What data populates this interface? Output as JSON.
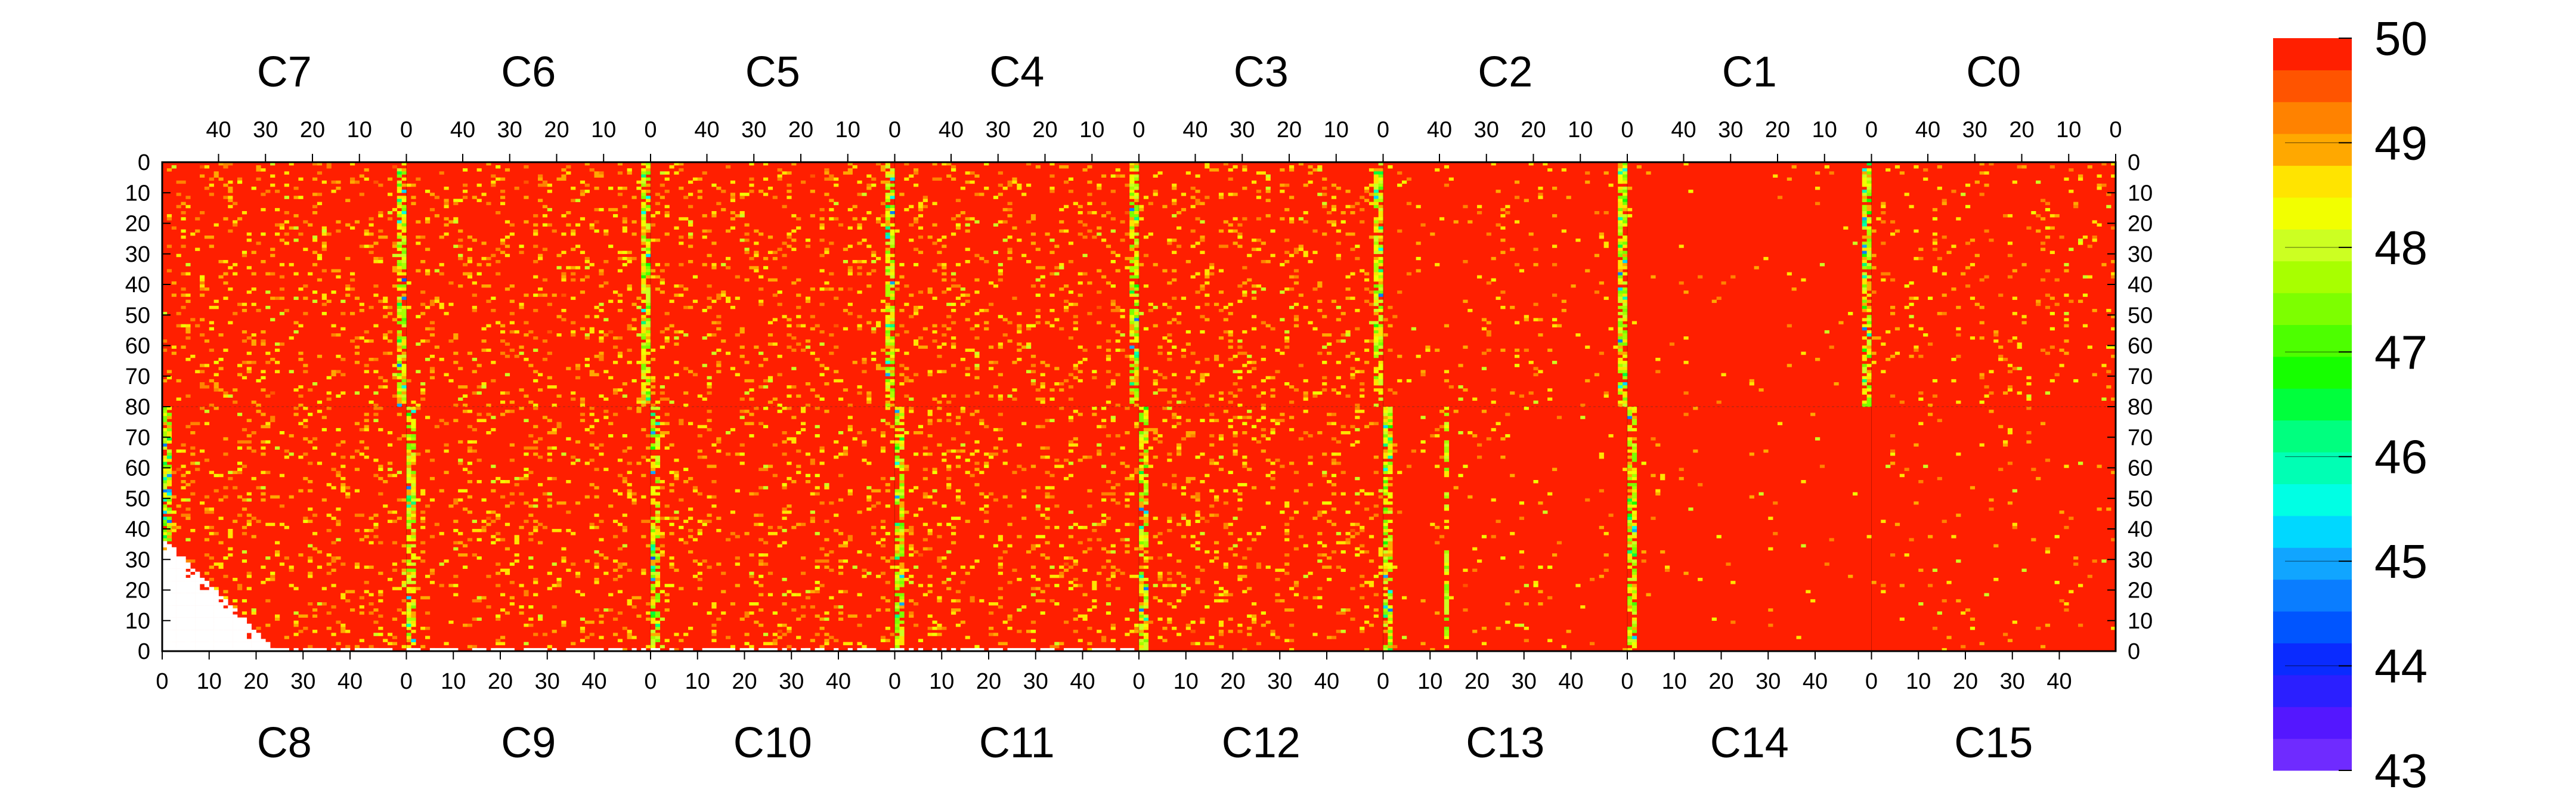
{
  "chart_data": {
    "type": "heatmap",
    "value_range": [
      43,
      50
    ],
    "colorbar": {
      "tick_labels": [
        "50",
        "49",
        "48",
        "47",
        "46",
        "45",
        "44",
        "43"
      ],
      "colors": [
        "#6f2bff",
        "#5417ff",
        "#2b1fff",
        "#0a2bff",
        "#0055ff",
        "#0a7dff",
        "#11a5ff",
        "#00d8ff",
        "#00ffe4",
        "#00ffb4",
        "#00ff7f",
        "#00ff3c",
        "#16ff00",
        "#4dff00",
        "#7dff00",
        "#a8ff00",
        "#ccff22",
        "#f2ff00",
        "#ffe400",
        "#ffa800",
        "#ff8200",
        "#ff5400",
        "#ff1f00"
      ]
    },
    "top_chips": [
      "C7",
      "C6",
      "C5",
      "C4",
      "C3",
      "C2",
      "C1",
      "C0"
    ],
    "bottom_chips": [
      "C8",
      "C9",
      "C10",
      "C11",
      "C12",
      "C13",
      "C14",
      "C15"
    ],
    "top_col_ticks": [
      "40",
      "30",
      "20",
      "10",
      "0"
    ],
    "bottom_col_ticks": [
      "0",
      "10",
      "20",
      "30",
      "40"
    ],
    "left_row_ticks": [
      "0",
      "10",
      "20",
      "30",
      "40",
      "50",
      "60",
      "70",
      "80",
      "70",
      "60",
      "50",
      "40",
      "30",
      "20",
      "10",
      "0"
    ],
    "right_row_ticks": [
      "0",
      "10",
      "20",
      "30",
      "40",
      "50",
      "60",
      "70",
      "80",
      "70",
      "60",
      "50",
      "40",
      "30",
      "20",
      "10",
      "0"
    ],
    "columns_per_chip": 52,
    "rows_per_half": 80,
    "background_value": 50,
    "high_activity_columns": [
      "C7/C8 col 0",
      "C6/C9 col 0",
      "C5/C10 col 0",
      "C4/C11 col 0",
      "C3/C12 col 0",
      "C2/C13 col 0",
      "C0/C15 col 0"
    ]
  }
}
